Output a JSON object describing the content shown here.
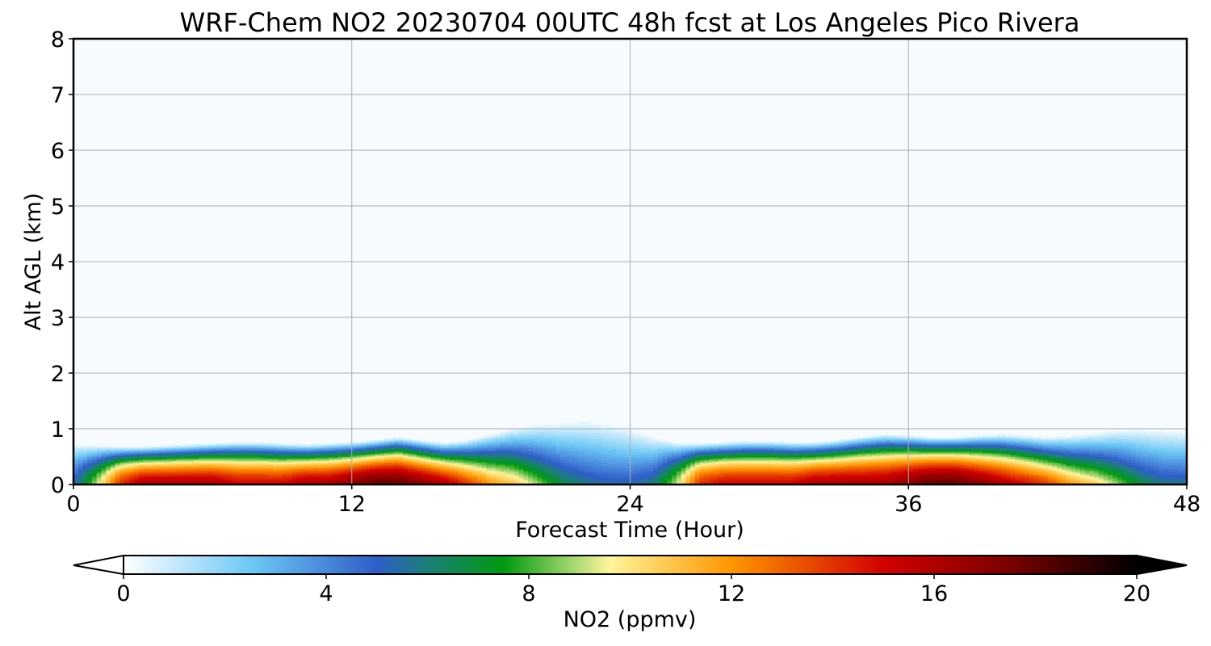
{
  "chart_data": {
    "type": "heatmap",
    "title": "WRF-Chem NO2  20230704 00UTC 48h fcst at Los Angeles Pico Rivera",
    "xlabel": "Forecast Time (Hour)",
    "ylabel": "Alt AGL (km)",
    "xlim": [
      0,
      48
    ],
    "ylim": [
      0,
      8
    ],
    "xticks": [
      0,
      12,
      24,
      36,
      48
    ],
    "yticks": [
      0,
      1,
      2,
      3,
      4,
      5,
      6,
      7,
      8
    ],
    "grid": true,
    "colorbar": {
      "label": "NO2  (ppmv)",
      "range": [
        0,
        20
      ],
      "ticks": [
        0,
        4,
        8,
        12,
        16,
        20
      ],
      "extend": "both",
      "colors": [
        {
          "v": 0,
          "c": "#ffffff"
        },
        {
          "v": 2.5,
          "c": "#6ec8f5"
        },
        {
          "v": 5,
          "c": "#2f5ec8"
        },
        {
          "v": 6,
          "c": "#1c7f7a"
        },
        {
          "v": 7.5,
          "c": "#009a10"
        },
        {
          "v": 9,
          "c": "#b4dc78"
        },
        {
          "v": 9.6,
          "c": "#fff59a"
        },
        {
          "v": 12,
          "c": "#ff9600"
        },
        {
          "v": 15,
          "c": "#d20000"
        },
        {
          "v": 17.5,
          "c": "#7a0000"
        },
        {
          "v": 20,
          "c": "#000000"
        }
      ]
    },
    "x": [
      0,
      1,
      2,
      3,
      4,
      5,
      6,
      7,
      8,
      9,
      10,
      11,
      12,
      13,
      14,
      15,
      16,
      17,
      18,
      19,
      20,
      21,
      22,
      23,
      24,
      25,
      26,
      27,
      28,
      29,
      30,
      31,
      32,
      33,
      34,
      35,
      36,
      37,
      38,
      39,
      40,
      41,
      42,
      43,
      44,
      45,
      46,
      47,
      48
    ],
    "surface_no2": [
      5,
      9,
      14,
      16,
      16,
      16,
      16,
      15,
      15,
      15,
      16,
      16,
      17,
      18,
      18,
      17,
      16,
      14,
      12,
      11,
      9,
      7,
      6,
      5.5,
      5.5,
      6,
      9,
      14,
      15,
      15,
      15,
      15,
      16,
      16,
      16,
      16,
      17,
      18,
      18,
      17,
      16,
      15,
      14,
      12,
      11,
      9,
      7,
      6,
      6
    ],
    "layer_depth_km": [
      0.72,
      0.7,
      0.68,
      0.68,
      0.7,
      0.72,
      0.74,
      0.76,
      0.76,
      0.74,
      0.72,
      0.74,
      0.76,
      0.8,
      0.85,
      0.8,
      0.75,
      0.8,
      0.9,
      1.0,
      1.08,
      1.12,
      1.15,
      1.1,
      1.0,
      0.85,
      0.75,
      0.74,
      0.76,
      0.78,
      0.78,
      0.76,
      0.76,
      0.8,
      0.86,
      0.9,
      0.88,
      0.85,
      0.85,
      0.88,
      0.9,
      0.88,
      0.85,
      0.88,
      0.92,
      0.98,
      1.0,
      0.98,
      0.95
    ],
    "shape_exponent": [
      1.5,
      1.5,
      1.6,
      1.6,
      1.6,
      1.6,
      1.6,
      1.6,
      1.6,
      1.6,
      1.6,
      1.6,
      1.6,
      1.6,
      1.6,
      1.5,
      1.4,
      1.3,
      1.2,
      1.1,
      1.0,
      1.0,
      1.0,
      1.0,
      1.0,
      1.2,
      1.5,
      1.6,
      1.6,
      1.6,
      1.6,
      1.6,
      1.6,
      1.6,
      1.6,
      1.6,
      1.6,
      1.6,
      1.6,
      1.5,
      1.4,
      1.3,
      1.2,
      1.1,
      1.0,
      1.0,
      1.0,
      1.0,
      1.0
    ],
    "background_no2": 0.2
  }
}
